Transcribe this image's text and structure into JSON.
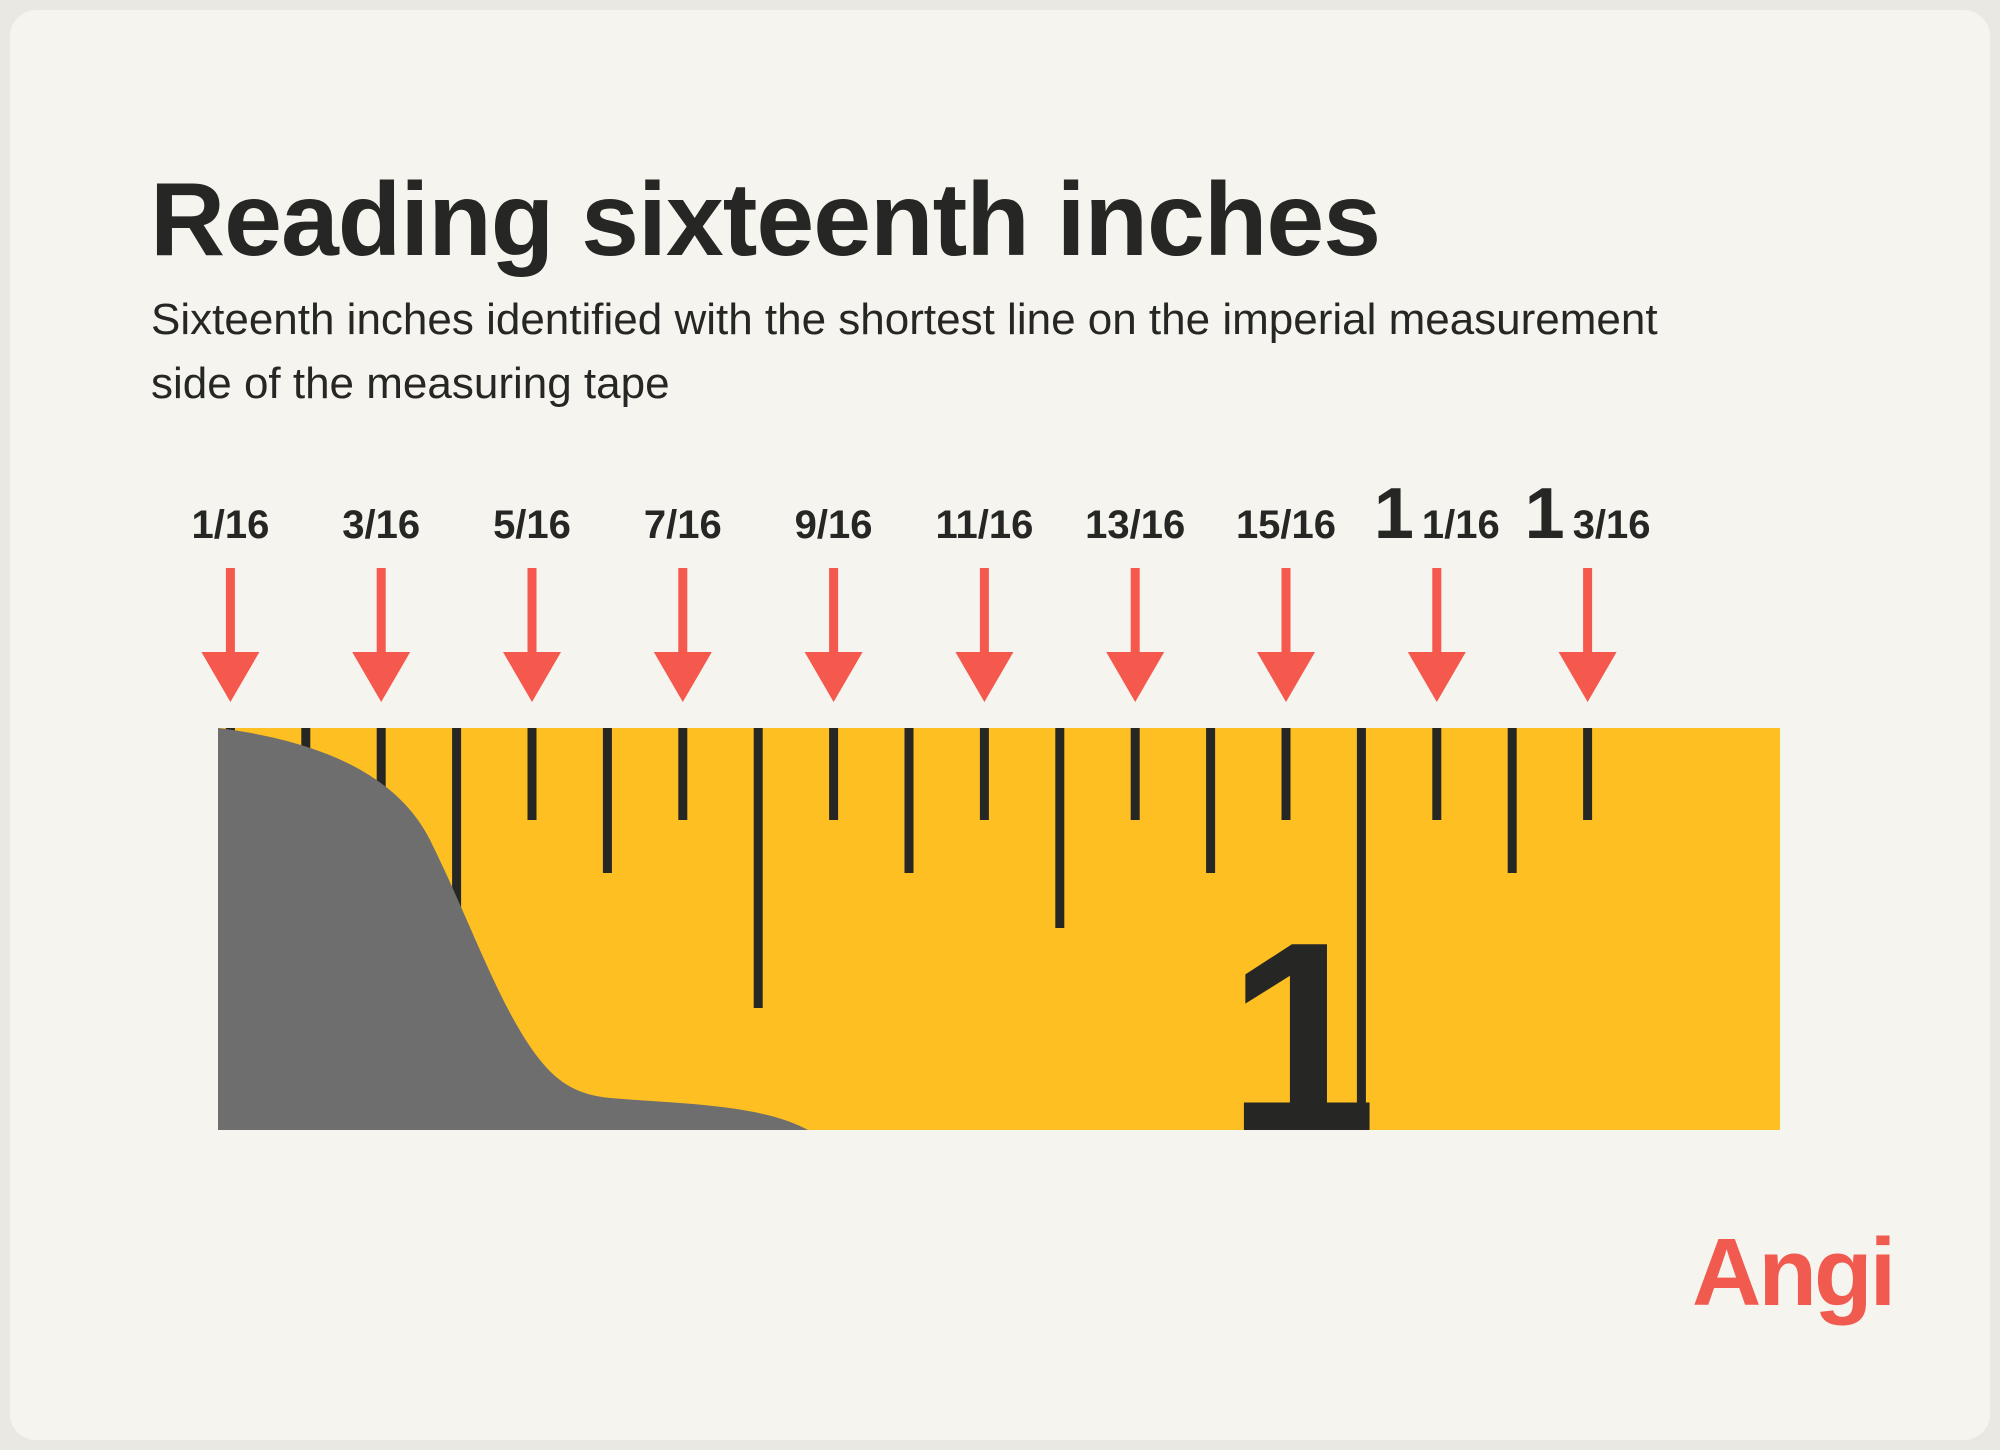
{
  "title": "Reading sixteenth inches",
  "subtitle": "Sixteenth inches identified with the shortest line on the imperial measurement side of the measuring tape",
  "labels": [
    {
      "whole": "",
      "fraction": "1/16"
    },
    {
      "whole": "",
      "fraction": "3/16"
    },
    {
      "whole": "",
      "fraction": "5/16"
    },
    {
      "whole": "",
      "fraction": "7/16"
    },
    {
      "whole": "",
      "fraction": "9/16"
    },
    {
      "whole": "",
      "fraction": "11/16"
    },
    {
      "whole": "",
      "fraction": "13/16"
    },
    {
      "whole": "",
      "fraction": "15/16"
    },
    {
      "whole": "1",
      "fraction": "1/16"
    },
    {
      "whole": "1",
      "fraction": "3/16"
    }
  ],
  "tape_number": "1",
  "logo": "Angi",
  "colors": {
    "background": "#f5f4ef",
    "text": "#262624",
    "tape": "#fdbf22",
    "tape_case": "#6e6e6e",
    "arrow": "#f5584d",
    "logo": "#f05a4f"
  },
  "icons": {
    "arrow": "arrow-down-icon",
    "tape_case": "tape-measure-case"
  }
}
